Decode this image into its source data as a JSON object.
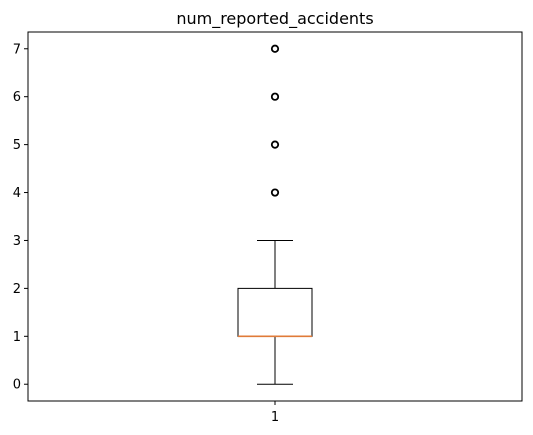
{
  "chart_data": {
    "type": "box",
    "title": "num_reported_accidents",
    "xlabel": "",
    "ylabel": "",
    "categories": [
      "1"
    ],
    "ylim": [
      -0.35,
      7.35
    ],
    "yticks": [
      0,
      1,
      2,
      3,
      4,
      5,
      6,
      7
    ],
    "grid": false,
    "box": {
      "min": 0,
      "q1": 1,
      "median": 1,
      "q3": 2,
      "max": 3,
      "outliers": [
        4,
        5,
        6,
        7
      ]
    },
    "colors": {
      "median": "#e07b39",
      "box": "#000000",
      "outlier": "#000000"
    }
  }
}
